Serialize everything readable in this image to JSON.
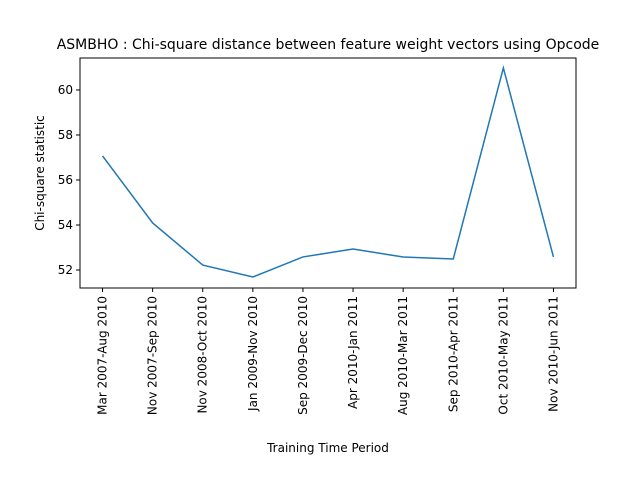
{
  "chart_data": {
    "type": "line",
    "title": "ASMBHO : Chi-square distance between feature weight vectors using Opcode",
    "x_label": "Training Time Period",
    "y_label": "Chi-square statistic",
    "categories": [
      "Mar 2007-Aug 2010",
      "Nov 2007-Sep 2010",
      "Nov 2008-Oct 2010",
      "Jan 2009-Nov 2010",
      "Sep 2009-Dec 2010",
      "Apr 2010-Jan 2011",
      "Aug 2010-Mar 2011",
      "Sep 2010-Apr 2011",
      "Oct 2010-May 2011",
      "Nov 2010-Jun 2011"
    ],
    "values": [
      57.07,
      54.09,
      52.22,
      51.69,
      52.58,
      52.93,
      52.58,
      52.49,
      60.98,
      52.58
    ],
    "color": "#1f77b4",
    "ylim": [
      51.2,
      61.42
    ],
    "yticks": [
      52,
      54,
      56,
      58,
      60
    ],
    "grid": false
  }
}
